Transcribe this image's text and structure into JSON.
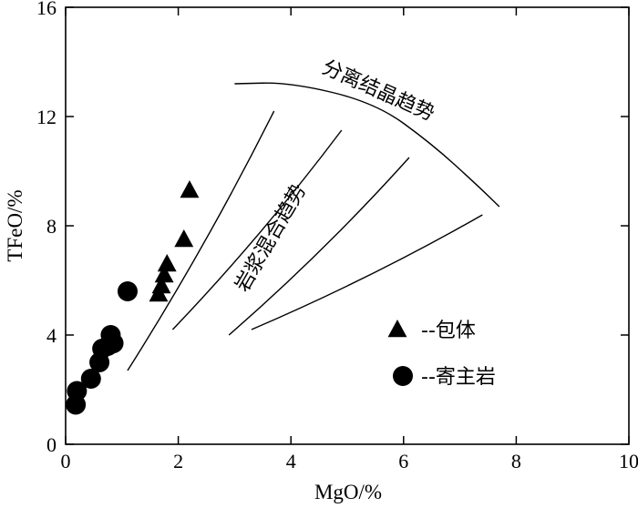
{
  "chart_data": {
    "type": "scatter",
    "xlabel": "MgO/%",
    "ylabel": "TFeO/%",
    "xlim": [
      0,
      10
    ],
    "ylim": [
      0,
      16
    ],
    "x_ticks": [
      0,
      2,
      4,
      6,
      8,
      10
    ],
    "y_ticks": [
      0,
      4,
      8,
      12,
      16
    ],
    "grid": false,
    "legend_position": "right",
    "series": [
      {
        "name": "--包体",
        "marker": "triangle",
        "points": [
          [
            2.2,
            9.3
          ],
          [
            2.1,
            7.5
          ],
          [
            1.8,
            6.6
          ],
          [
            1.75,
            6.2
          ],
          [
            1.7,
            5.8
          ],
          [
            1.65,
            5.5
          ]
        ]
      },
      {
        "name": "--寄主岩",
        "marker": "circle",
        "points": [
          [
            1.1,
            5.6
          ],
          [
            0.8,
            4.0
          ],
          [
            0.85,
            3.7
          ],
          [
            0.75,
            3.6
          ],
          [
            0.65,
            3.5
          ],
          [
            0.6,
            3.0
          ],
          [
            0.45,
            2.4
          ],
          [
            0.2,
            1.95
          ],
          [
            0.18,
            1.45
          ]
        ]
      }
    ],
    "annotations": {
      "fractional_crystallization": "分离结晶趋势",
      "magma_mixing": "岩浆混合趋势"
    },
    "trend_lines": {
      "mixing": [
        [
          [
            1.1,
            2.7
          ],
          [
            3.7,
            12.2
          ]
        ],
        [
          [
            1.9,
            4.2
          ],
          [
            4.9,
            11.5
          ]
        ],
        [
          [
            2.9,
            4.0
          ],
          [
            6.1,
            10.5
          ]
        ],
        [
          [
            3.3,
            4.2
          ],
          [
            7.4,
            8.4
          ]
        ]
      ],
      "crystallization": [
        [
          3.0,
          13.2
        ],
        [
          4.0,
          13.25
        ],
        [
          5.5,
          12.5
        ],
        [
          6.5,
          11.0
        ],
        [
          7.3,
          9.5
        ],
        [
          7.7,
          8.7
        ]
      ]
    }
  }
}
